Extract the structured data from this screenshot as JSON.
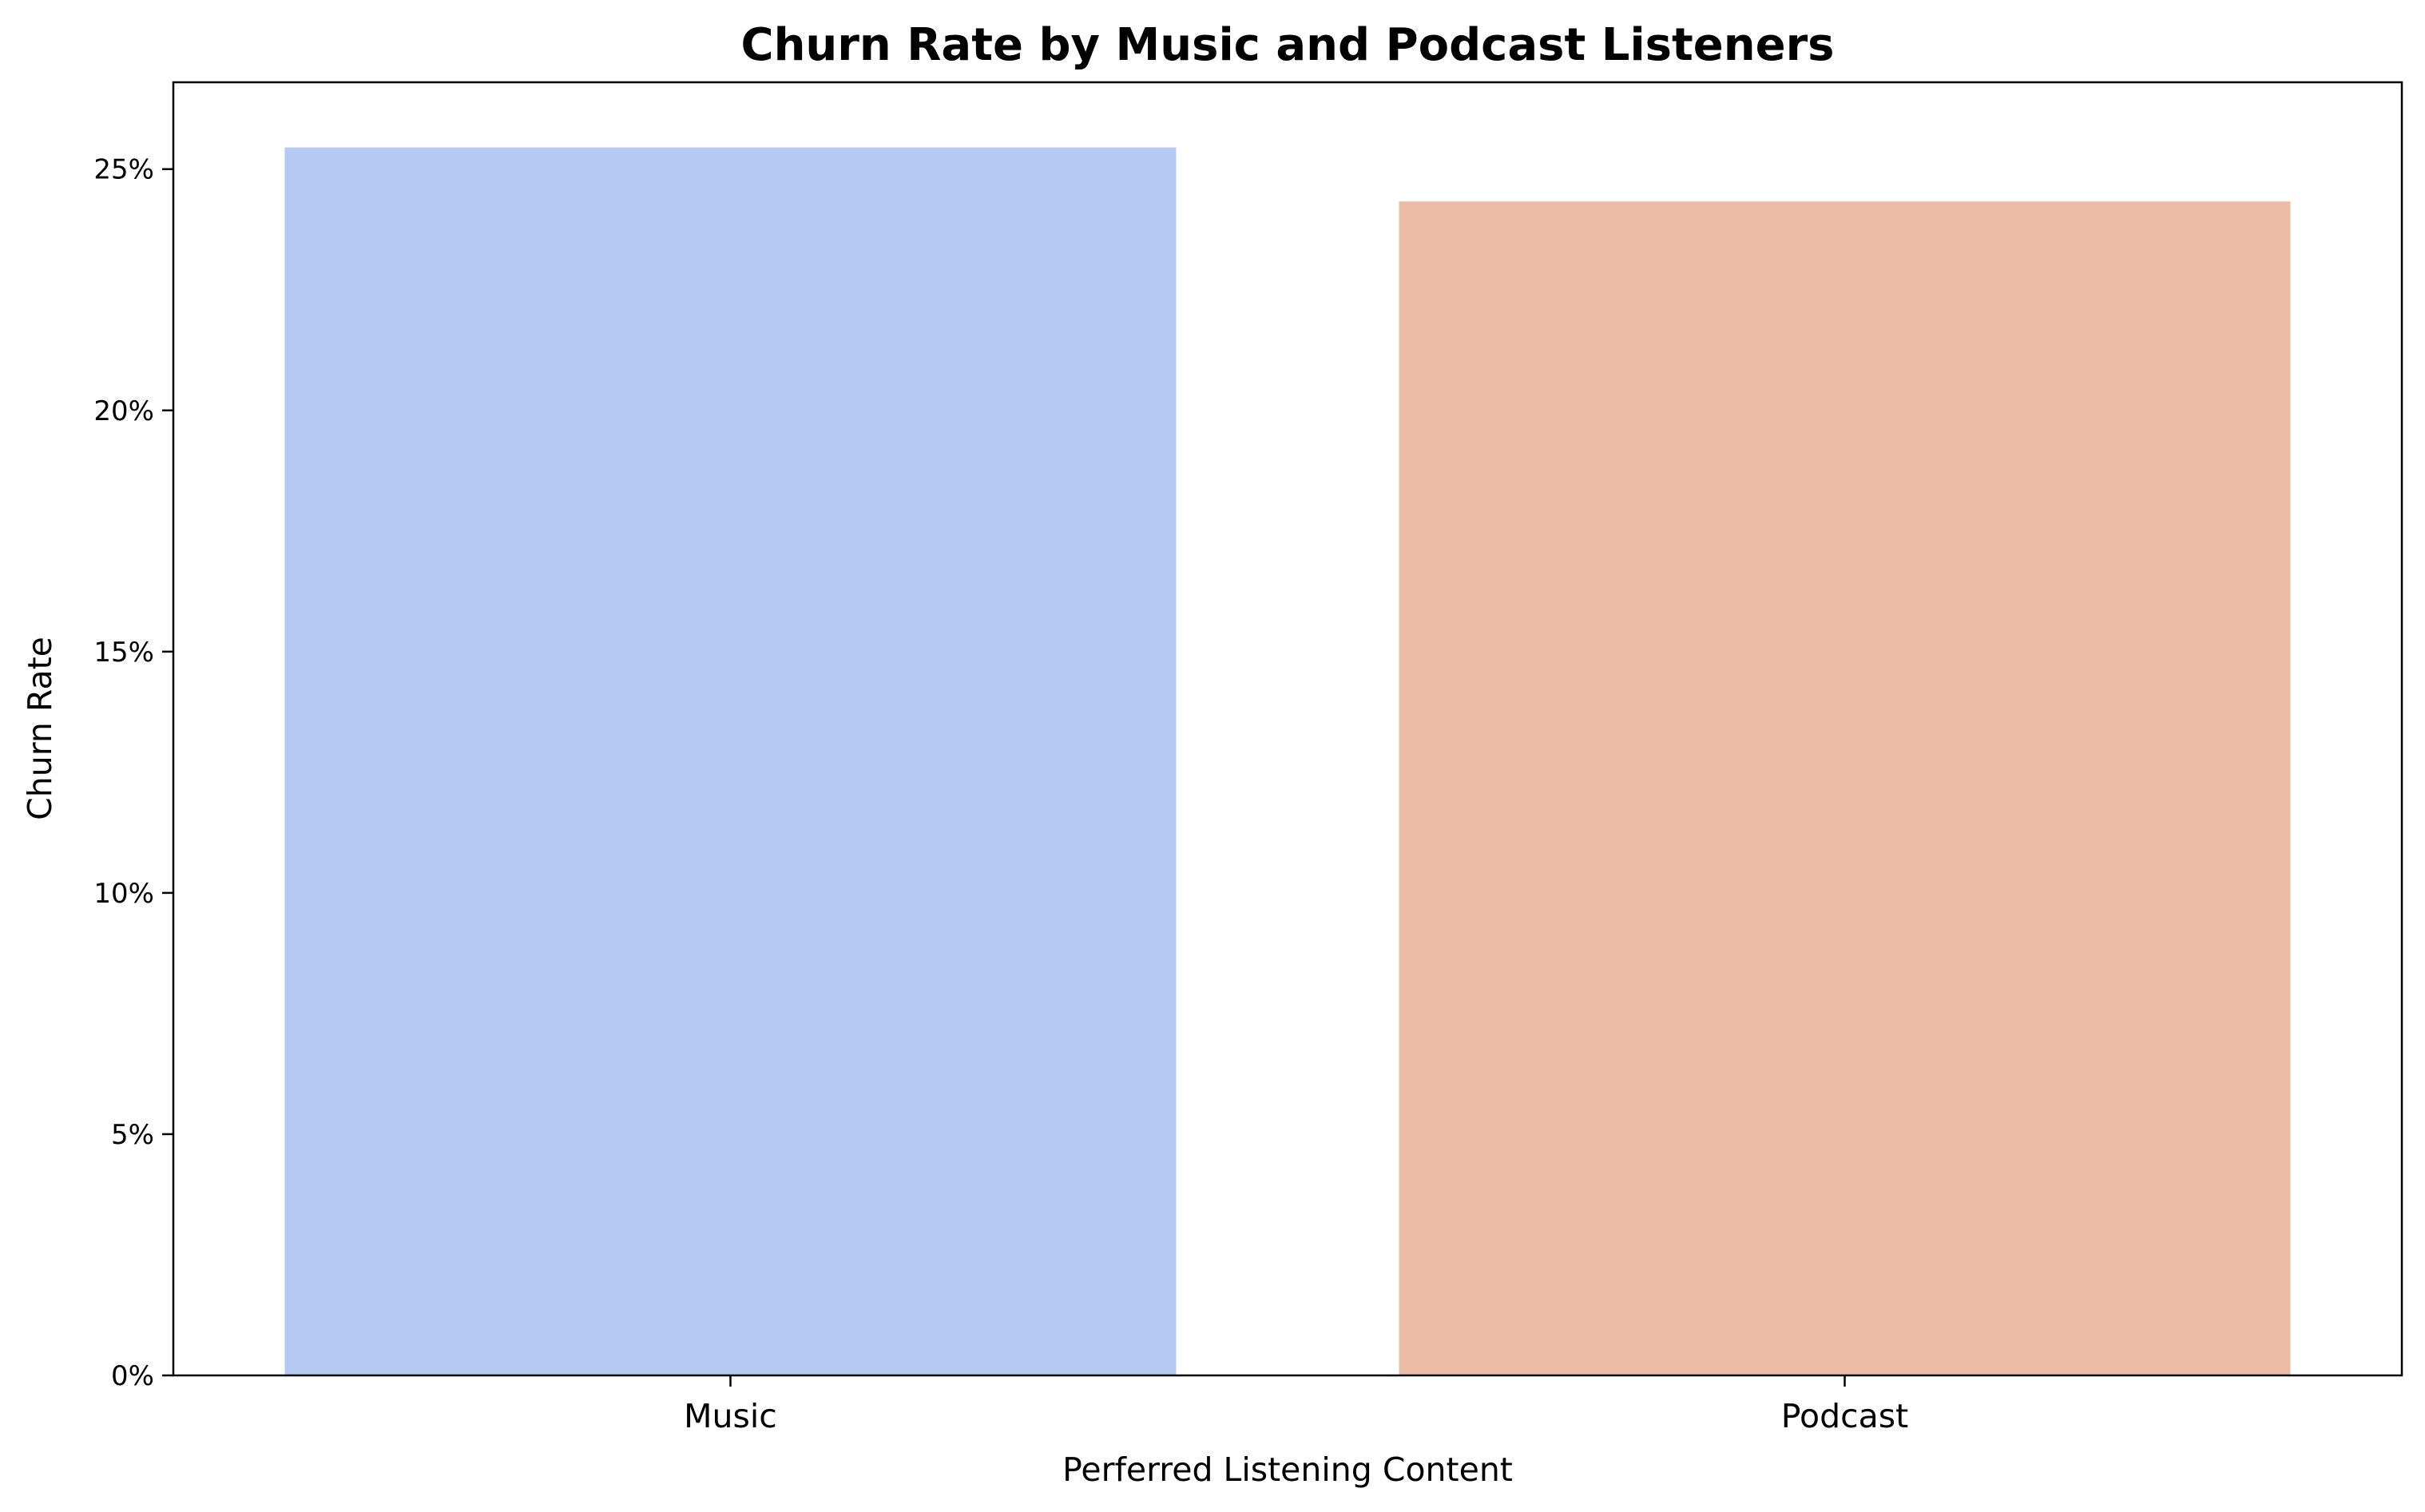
{
  "chart_data": {
    "type": "bar",
    "title": "Churn Rate by Music and Podcast Listeners",
    "xlabel": "Perferred Listening Content",
    "ylabel": "Churn Rate",
    "categories": [
      "Music",
      "Podcast"
    ],
    "values": [
      0.2545,
      0.2433
    ],
    "ylim": [
      0,
      0.268
    ],
    "yticks": [
      0,
      0.05,
      0.1,
      0.15,
      0.2,
      0.25
    ],
    "ytick_labels": [
      "0%",
      "5%",
      "10%",
      "15%",
      "20%",
      "25%"
    ],
    "bar_colors": [
      "#b5c9f2",
      "#ecbba5"
    ],
    "grid": false,
    "legend": "none"
  }
}
